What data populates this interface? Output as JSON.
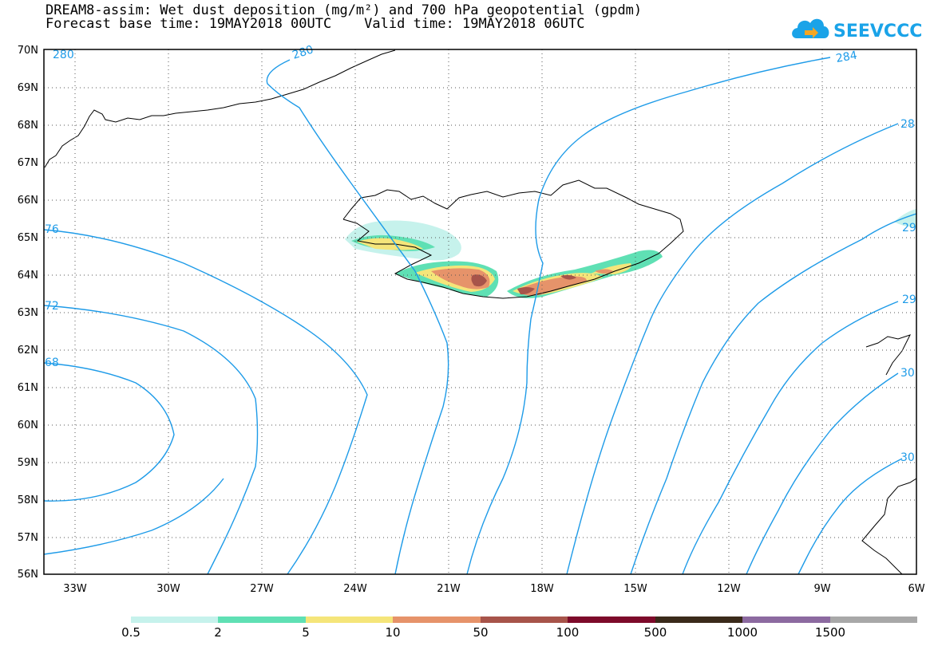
{
  "title_line1": "DREAM8-assim: Wet dust deposition (mg/m²) and 700 hPa geopotential (gpdm)",
  "title_line2": "Forecast base time: 19MAY2018 00UTC    Valid time: 19MAY2018 06UTC",
  "logo_text": "SEEVCCC",
  "map": {
    "lon_labels": [
      "33W",
      "30W",
      "27W",
      "24W",
      "21W",
      "18W",
      "15W",
      "12W",
      "9W",
      "6W"
    ],
    "lat_labels": [
      "70N",
      "69N",
      "68N",
      "67N",
      "66N",
      "65N",
      "64N",
      "63N",
      "62N",
      "61N",
      "60N",
      "59N",
      "58N",
      "57N",
      "56N"
    ],
    "contour_labels": [
      "280",
      "280",
      "284",
      "28",
      "76",
      "72",
      "68",
      "29",
      "29",
      "30",
      "30"
    ],
    "line_color": "#1e9be8"
  },
  "colorbar": {
    "colors": [
      "#c6f2ec",
      "#5fe0b4",
      "#f5e57a",
      "#e6936a",
      "#a7544a",
      "#7d0a2a",
      "#3a2a1a",
      "#8c6aa0",
      "#a8a8a8"
    ],
    "labels": [
      "0.5",
      "2",
      "5",
      "10",
      "50",
      "100",
      "500",
      "1000",
      "1500"
    ]
  }
}
